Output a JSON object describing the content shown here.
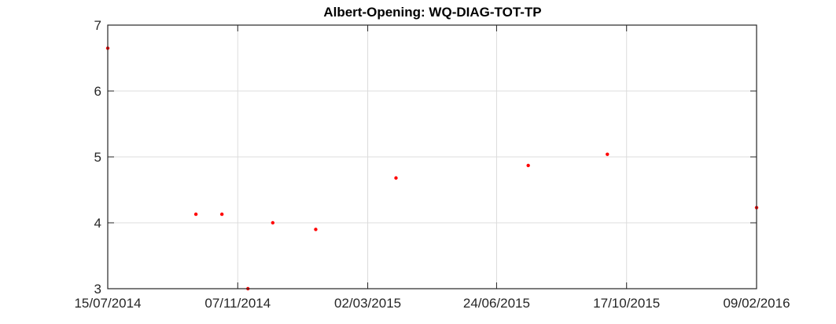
{
  "chart_data": {
    "type": "scatter",
    "title": "Albert-Opening: WQ-DIAG-TOT-TP",
    "xlabel": "",
    "ylabel": "",
    "x_axis_type": "date",
    "xlim": [
      "15/07/2014",
      "09/02/2016"
    ],
    "ylim": [
      3,
      7
    ],
    "x_ticks": [
      "15/07/2014",
      "07/11/2014",
      "02/03/2015",
      "24/06/2015",
      "17/10/2015",
      "09/02/2016"
    ],
    "y_ticks": [
      3,
      4,
      5,
      6,
      7
    ],
    "grid": true,
    "legend": "none",
    "marker_color": "#ff0000",
    "series": [
      {
        "x": [
          "15/07/2014",
          "01/10/2014",
          "24/10/2014",
          "16/11/2014",
          "08/12/2014",
          "15/01/2015",
          "27/03/2015",
          "22/07/2015",
          "30/09/2015",
          "09/02/2016"
        ],
        "y": [
          6.65,
          4.13,
          4.13,
          3.0,
          4.0,
          3.9,
          4.68,
          4.87,
          5.04,
          4.23
        ]
      }
    ]
  }
}
